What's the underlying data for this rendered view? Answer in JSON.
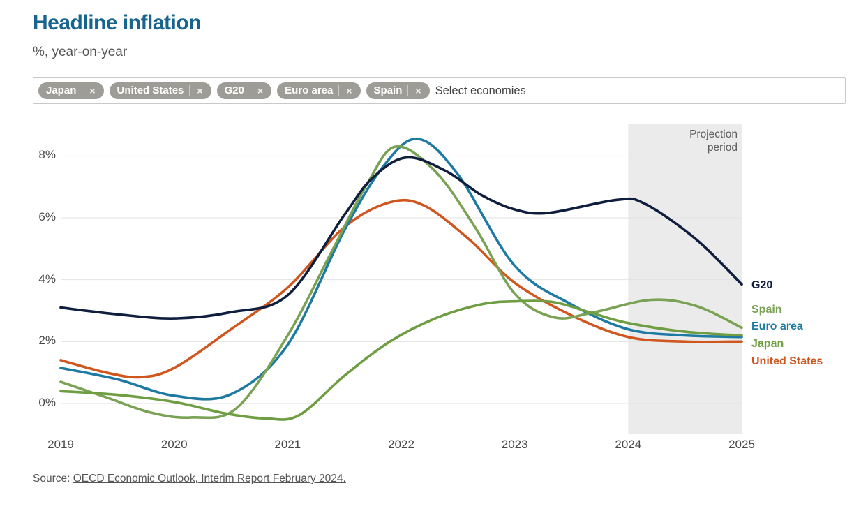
{
  "header": {
    "title": "Headline inflation",
    "subtitle": "%, year-on-year"
  },
  "select": {
    "placeholder": "Select economies",
    "remove_icon": "×",
    "chips": [
      {
        "label": "Japan"
      },
      {
        "label": "United States"
      },
      {
        "label": "G20"
      },
      {
        "label": "Euro area"
      },
      {
        "label": "Spain"
      }
    ]
  },
  "source": {
    "prefix": "Source:",
    "link": "OECD Economic Outlook, Interim Report February 2024."
  },
  "chart_data": {
    "type": "line",
    "title": "Headline inflation",
    "ylabel": "%, year-on-year",
    "xlim": [
      2019,
      2025
    ],
    "ylim": [
      -1,
      9
    ],
    "grid": true,
    "legend_position": "right",
    "x_ticks": [
      {
        "value": 2019,
        "label": "2019"
      },
      {
        "value": 2020,
        "label": "2020"
      },
      {
        "value": 2021,
        "label": "2021"
      },
      {
        "value": 2022,
        "label": "2022"
      },
      {
        "value": 2023,
        "label": "2023"
      },
      {
        "value": 2024,
        "label": "2024"
      },
      {
        "value": 2025,
        "label": "2025"
      }
    ],
    "y_ticks": [
      {
        "value": 8,
        "label": "8%"
      },
      {
        "value": 6,
        "label": "6%"
      },
      {
        "value": 4,
        "label": "4%"
      },
      {
        "value": 2,
        "label": "2%"
      },
      {
        "value": 0,
        "label": "0%"
      }
    ],
    "projection": {
      "from": 2024,
      "to": 2025,
      "label": "Projection period",
      "fill": "#ebebeb"
    },
    "grid_color": "#e2e2e2",
    "series": [
      {
        "name": "G20",
        "color": "#0f1e3d",
        "points": [
          [
            2019,
            3.1
          ],
          [
            2019.5,
            2.88
          ],
          [
            2020,
            2.75
          ],
          [
            2020.5,
            2.95
          ],
          [
            2021,
            3.5
          ],
          [
            2021.5,
            6.1
          ],
          [
            2021.75,
            7.3
          ],
          [
            2022.05,
            7.95
          ],
          [
            2022.4,
            7.5
          ],
          [
            2022.7,
            6.75
          ],
          [
            2023,
            6.27
          ],
          [
            2023.3,
            6.16
          ],
          [
            2023.9,
            6.58
          ],
          [
            2024.15,
            6.45
          ],
          [
            2024.6,
            5.3
          ],
          [
            2025,
            3.85
          ]
        ]
      },
      {
        "name": "Spain",
        "color": "#79a254",
        "points": [
          [
            2019,
            0.7
          ],
          [
            2019.4,
            0.2
          ],
          [
            2019.8,
            -0.3
          ],
          [
            2020.15,
            -0.45
          ],
          [
            2020.55,
            -0.15
          ],
          [
            2021,
            2.2
          ],
          [
            2021.4,
            5.0
          ],
          [
            2021.7,
            7.1
          ],
          [
            2021.95,
            8.3
          ],
          [
            2022.3,
            7.5
          ],
          [
            2022.65,
            5.7
          ],
          [
            2023,
            3.55
          ],
          [
            2023.35,
            2.78
          ],
          [
            2023.7,
            2.95
          ],
          [
            2024.2,
            3.35
          ],
          [
            2024.6,
            3.15
          ],
          [
            2025,
            2.45
          ]
        ]
      },
      {
        "name": "Euro area",
        "color": "#1f7aa3",
        "points": [
          [
            2019,
            1.15
          ],
          [
            2019.5,
            0.78
          ],
          [
            2020,
            0.25
          ],
          [
            2020.5,
            0.3
          ],
          [
            2021,
            1.9
          ],
          [
            2021.5,
            5.6
          ],
          [
            2021.85,
            7.7
          ],
          [
            2022.15,
            8.55
          ],
          [
            2022.5,
            7.4
          ],
          [
            2023,
            4.45
          ],
          [
            2023.5,
            3.2
          ],
          [
            2024,
            2.4
          ],
          [
            2024.5,
            2.2
          ],
          [
            2025,
            2.15
          ]
        ]
      },
      {
        "name": "Japan",
        "color": "#6f9d42",
        "points": [
          [
            2019,
            0.4
          ],
          [
            2019.5,
            0.28
          ],
          [
            2020,
            0.05
          ],
          [
            2020.45,
            -0.32
          ],
          [
            2020.8,
            -0.48
          ],
          [
            2021.1,
            -0.38
          ],
          [
            2021.5,
            0.9
          ],
          [
            2021.9,
            2.0
          ],
          [
            2022.3,
            2.75
          ],
          [
            2022.7,
            3.2
          ],
          [
            2023,
            3.3
          ],
          [
            2023.35,
            3.27
          ],
          [
            2023.7,
            2.9
          ],
          [
            2024,
            2.6
          ],
          [
            2024.5,
            2.32
          ],
          [
            2025,
            2.2
          ]
        ]
      },
      {
        "name": "United States",
        "color": "#d0561f",
        "points": [
          [
            2019,
            1.4
          ],
          [
            2019.4,
            1.0
          ],
          [
            2019.7,
            0.85
          ],
          [
            2020,
            1.15
          ],
          [
            2020.5,
            2.4
          ],
          [
            2021,
            3.75
          ],
          [
            2021.5,
            5.7
          ],
          [
            2021.9,
            6.5
          ],
          [
            2022.2,
            6.4
          ],
          [
            2022.6,
            5.3
          ],
          [
            2023,
            3.9
          ],
          [
            2023.5,
            2.85
          ],
          [
            2024,
            2.15
          ],
          [
            2024.5,
            2.0
          ],
          [
            2025,
            2.0
          ]
        ]
      }
    ]
  }
}
